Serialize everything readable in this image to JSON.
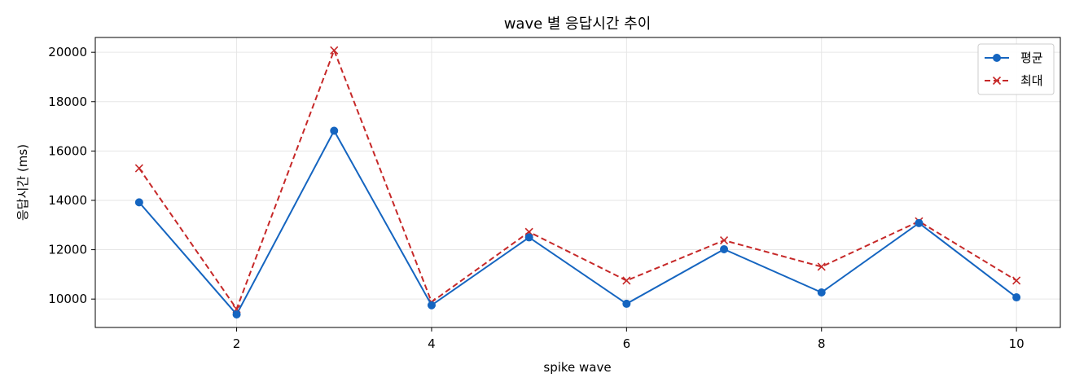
{
  "chart_data": {
    "type": "line",
    "title": "wave 별 응답시간 추이",
    "xlabel": "spike wave",
    "ylabel": "응답시간 (ms)",
    "x": [
      1,
      2,
      3,
      4,
      5,
      6,
      7,
      8,
      9,
      10
    ],
    "xticks": [
      2,
      4,
      6,
      8,
      10
    ],
    "yticks": [
      10000,
      12000,
      14000,
      16000,
      18000,
      20000
    ],
    "xlim": [
      0.55,
      10.45
    ],
    "ylim": [
      8850,
      20600
    ],
    "grid": true,
    "legend_position": "top-right",
    "series": [
      {
        "name": "평균",
        "values": [
          13920,
          9380,
          16820,
          9750,
          12500,
          9810,
          12020,
          10270,
          13080,
          10070
        ],
        "color": "#1565c0",
        "line_style": "solid",
        "marker": "circle"
      },
      {
        "name": "최대",
        "values": [
          15300,
          9600,
          20080,
          9880,
          12720,
          10750,
          12380,
          11310,
          13150,
          10750
        ],
        "color": "#c62828",
        "line_style": "dashed",
        "marker": "x"
      }
    ]
  }
}
